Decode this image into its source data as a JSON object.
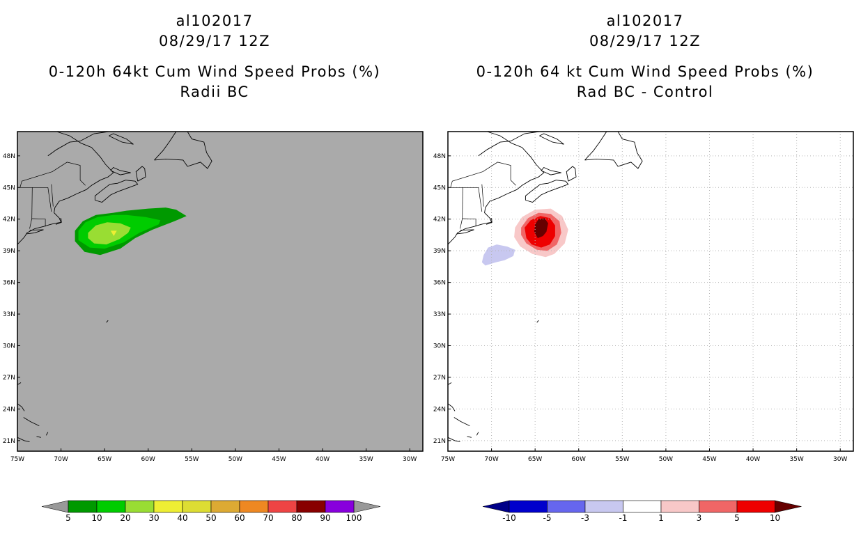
{
  "left_panel": {
    "storm_id": "al102017",
    "datetime": "08/29/17 12Z",
    "product": "0-120h 64kt Cum Wind Speed Probs (%)",
    "subtitle": "Radii BC",
    "background_color": "#aaaaaa",
    "legend": {
      "labels": [
        "5",
        "10",
        "20",
        "30",
        "40",
        "50",
        "60",
        "70",
        "80",
        "90",
        "100"
      ],
      "colors": [
        "#009900",
        "#00cc00",
        "#99dd33",
        "#eeee33",
        "#dddd33",
        "#ddaa33",
        "#ee8822",
        "#ee4444",
        "#880000",
        "#8800dd"
      ],
      "arrow_color": "#999999"
    }
  },
  "right_panel": {
    "storm_id": "al102017",
    "datetime": "08/29/17 12Z",
    "product": "0-120h 64 kt Cum Wind Speed Probs (%)",
    "subtitle": "Rad BC - Control",
    "background_color": "#ffffff",
    "legend": {
      "labels": [
        "-10",
        "-5",
        "-3",
        "-1",
        "1",
        "3",
        "5",
        "10"
      ],
      "colors": [
        "#0000cc",
        "#6666ee",
        "#c8c8f0",
        "#ffffff",
        "#f8c8c8",
        "#f06666",
        "#ee0000"
      ],
      "arrow_left_color": "#000088",
      "arrow_right_color": "#660000"
    }
  },
  "axes": {
    "lon_labels": [
      "75W",
      "70W",
      "65W",
      "60W",
      "55W",
      "50W",
      "45W",
      "40W",
      "35W",
      "30W"
    ],
    "lat_labels": [
      "48N",
      "45N",
      "42N",
      "39N",
      "36N",
      "33N",
      "30N",
      "27N",
      "24N",
      "21N"
    ],
    "lon_range": [
      -75,
      -28.5
    ],
    "lat_range": [
      20,
      50.3
    ]
  }
}
